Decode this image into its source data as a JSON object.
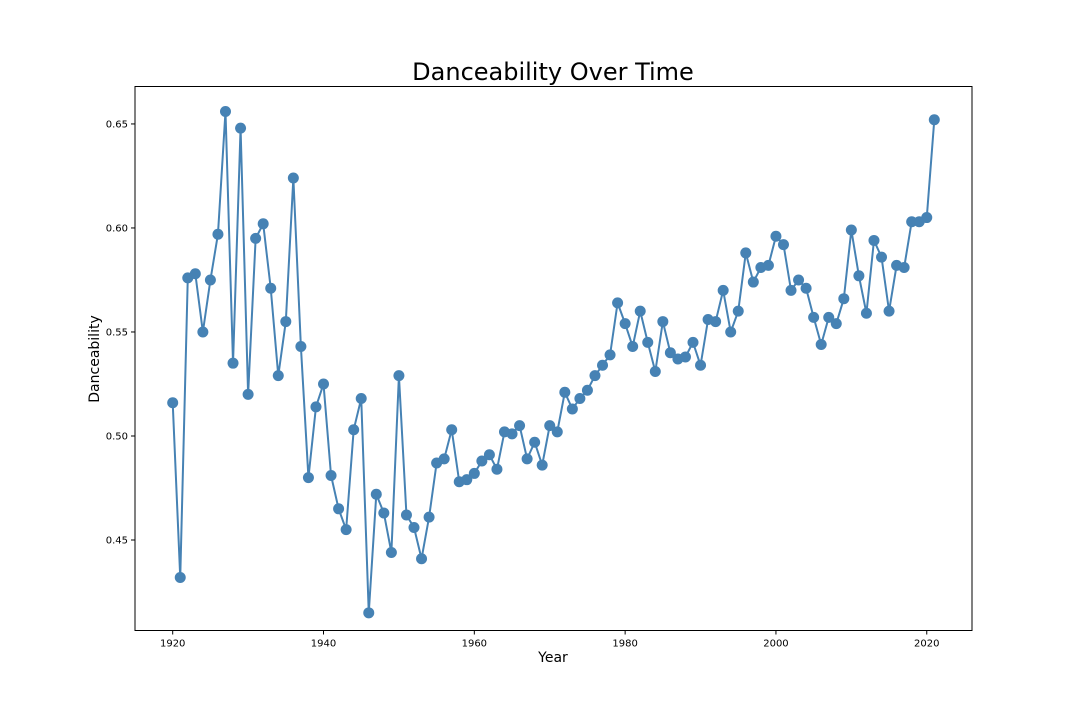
{
  "chart_data": {
    "type": "line",
    "title": "Danceability Over Time",
    "xlabel": "Year",
    "ylabel": "Danceability",
    "xlim": [
      1915,
      2026
    ],
    "ylim": [
      0.4065,
      0.668
    ],
    "xticks": [
      1920,
      1940,
      1960,
      1980,
      2000,
      2020
    ],
    "yticks": [
      0.45,
      0.5,
      0.55,
      0.6,
      0.65
    ],
    "ytick_labels": [
      "0.45",
      "0.50",
      "0.55",
      "0.60",
      "0.65"
    ],
    "grid": false,
    "line_color": "#4682b4",
    "marker": "circle",
    "x": [
      1920,
      1921,
      1922,
      1923,
      1924,
      1925,
      1926,
      1927,
      1928,
      1929,
      1930,
      1931,
      1932,
      1933,
      1934,
      1935,
      1936,
      1937,
      1938,
      1939,
      1940,
      1941,
      1942,
      1943,
      1944,
      1945,
      1946,
      1947,
      1948,
      1949,
      1950,
      1951,
      1952,
      1953,
      1954,
      1955,
      1956,
      1957,
      1958,
      1959,
      1960,
      1961,
      1962,
      1963,
      1964,
      1965,
      1966,
      1967,
      1968,
      1969,
      1970,
      1971,
      1972,
      1973,
      1974,
      1975,
      1976,
      1977,
      1978,
      1979,
      1980,
      1981,
      1982,
      1983,
      1984,
      1985,
      1986,
      1987,
      1988,
      1989,
      1990,
      1991,
      1992,
      1993,
      1994,
      1995,
      1996,
      1997,
      1998,
      1999,
      2000,
      2001,
      2002,
      2003,
      2004,
      2005,
      2006,
      2007,
      2008,
      2009,
      2010,
      2011,
      2012,
      2013,
      2014,
      2015,
      2016,
      2017,
      2018,
      2019,
      2020,
      2021
    ],
    "y": [
      0.516,
      0.432,
      0.576,
      0.578,
      0.55,
      0.575,
      0.597,
      0.656,
      0.535,
      0.648,
      0.52,
      0.595,
      0.602,
      0.571,
      0.529,
      0.555,
      0.624,
      0.543,
      0.48,
      0.514,
      0.525,
      0.481,
      0.465,
      0.455,
      0.503,
      0.518,
      0.415,
      0.472,
      0.463,
      0.444,
      0.529,
      0.462,
      0.456,
      0.441,
      0.461,
      0.487,
      0.489,
      0.503,
      0.478,
      0.479,
      0.482,
      0.488,
      0.491,
      0.484,
      0.502,
      0.501,
      0.505,
      0.489,
      0.497,
      0.486,
      0.505,
      0.502,
      0.521,
      0.513,
      0.518,
      0.522,
      0.529,
      0.534,
      0.539,
      0.564,
      0.554,
      0.543,
      0.56,
      0.545,
      0.531,
      0.555,
      0.54,
      0.537,
      0.538,
      0.545,
      0.534,
      0.556,
      0.555,
      0.57,
      0.55,
      0.56,
      0.588,
      0.574,
      0.581,
      0.582,
      0.596,
      0.592,
      0.57,
      0.575,
      0.571,
      0.557,
      0.544,
      0.557,
      0.554,
      0.566,
      0.599,
      0.577,
      0.559,
      0.594,
      0.586,
      0.56,
      0.582,
      0.581,
      0.603,
      0.603,
      0.605,
      0.652
    ]
  }
}
